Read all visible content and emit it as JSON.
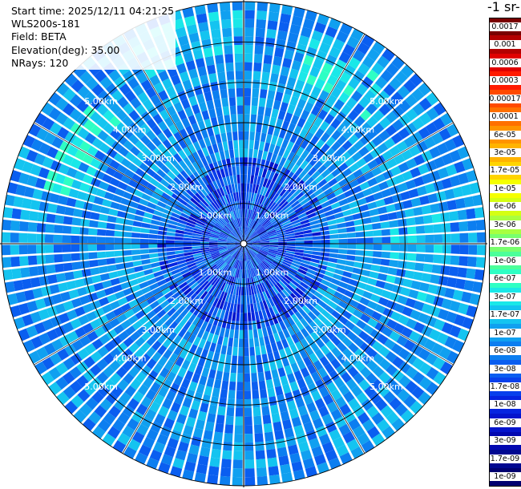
{
  "info": {
    "start_time": "Start time: 2025/12/11 04:21:25",
    "instrument": "WLS200s-181",
    "field": "Field: BETA",
    "elevation": "Elevation(deg): 35.00",
    "nrays": "NRays: 120"
  },
  "colorbar": {
    "unit_title": "-1 sr-",
    "labels": [
      "0.0017",
      "0.001",
      "0.0006",
      "0.0003",
      "0.00017",
      "0.0001",
      "6e-05",
      "3e-05",
      "1.7e-05",
      "1e-05",
      "6e-06",
      "3e-06",
      "1.7e-06",
      "1e-06",
      "6e-07",
      "3e-07",
      "1.7e-07",
      "1e-07",
      "6e-08",
      "3e-08",
      "1.7e-08",
      "1e-08",
      "6e-09",
      "3e-09",
      "1.7e-09",
      "1e-09"
    ],
    "colors": [
      "#7a0000",
      "#b30000",
      "#e00000",
      "#ff1a00",
      "#ff4a00",
      "#ff7000",
      "#ff9400",
      "#ffb300",
      "#ffd400",
      "#f5ff00",
      "#d4ff14",
      "#a8ff40",
      "#78ff6e",
      "#4cff9a",
      "#2effc4",
      "#1ae8e8",
      "#14c4f0",
      "#10a0f0",
      "#0c7ef0",
      "#0a5ef0",
      "#0840ec",
      "#0624e0",
      "#0414cc",
      "#0208b0",
      "#000890",
      "#000070"
    ]
  },
  "chart_data": {
    "type": "ppi_scan",
    "title": "",
    "field": "BETA",
    "elevation_deg": 35.0,
    "n_rays": 120,
    "range_rings_km": [
      1,
      2,
      3,
      4,
      5,
      6
    ],
    "ring_labels": [
      "1.00km",
      "2.00km",
      "3.00km",
      "4.00km",
      "5.00km"
    ],
    "max_range_km": 6.0,
    "value_range": [
      1e-09,
      0.0017
    ],
    "scale": "log",
    "axes_spokes_deg": [
      0,
      30,
      60,
      90,
      120,
      150,
      180,
      210,
      240,
      270,
      300,
      330
    ],
    "background_level": "1e-07",
    "enhanced_regions": [
      {
        "azimuth_deg": 30,
        "range_km": 4.8,
        "level": "6e-07"
      },
      {
        "azimuth_deg": 300,
        "range_km": 4.6,
        "level": "6e-07"
      },
      {
        "azimuth_deg": 345,
        "range_km": 5.2,
        "level": "3e-07"
      },
      {
        "azimuth_deg": 95,
        "range_km": 4.3,
        "level": "3e-07"
      }
    ]
  }
}
